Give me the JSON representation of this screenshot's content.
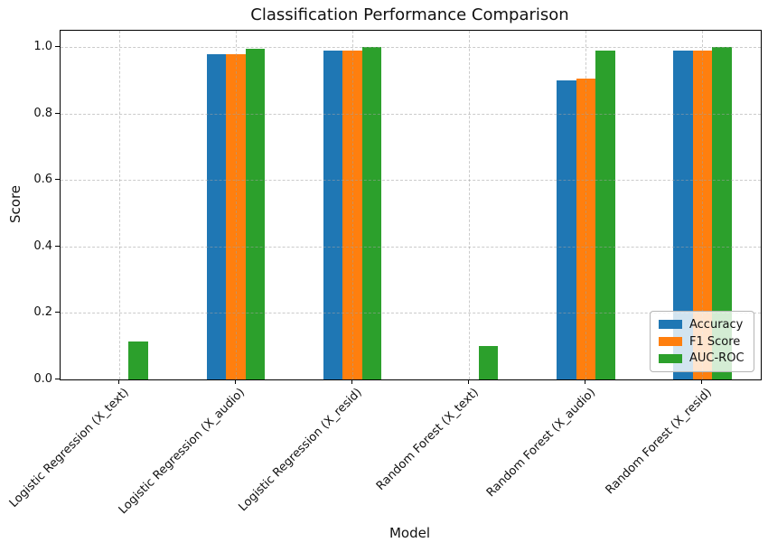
{
  "chart_data": {
    "type": "bar",
    "title": "Classification Performance Comparison",
    "xlabel": "Model",
    "ylabel": "Score",
    "categories": [
      "Logistic Regression (X_text)",
      "Logistic Regression (X_audio)",
      "Logistic Regression (X_resid)",
      "Random Forest (X_text)",
      "Random Forest (X_audio)",
      "Random Forest (X_resid)"
    ],
    "series": [
      {
        "name": "Accuracy",
        "color": "#1f77b4",
        "values": [
          0.0,
          0.98,
          0.99,
          0.0,
          0.9,
          0.99
        ]
      },
      {
        "name": "F1 Score",
        "color": "#ff7f0e",
        "values": [
          0.0,
          0.98,
          0.99,
          0.0,
          0.905,
          0.99
        ]
      },
      {
        "name": "AUC-ROC",
        "color": "#2ca02c",
        "values": [
          0.115,
          0.995,
          1.0,
          0.1,
          0.99,
          1.0
        ]
      }
    ],
    "ylim": [
      0,
      1.05
    ],
    "yticks": [
      "0.0",
      "0.2",
      "0.4",
      "0.6",
      "0.8",
      "1.0"
    ],
    "xtick_rotation_deg": 45,
    "grid": "dashed, both axes, drawn above bars",
    "legend_position": "lower right"
  }
}
